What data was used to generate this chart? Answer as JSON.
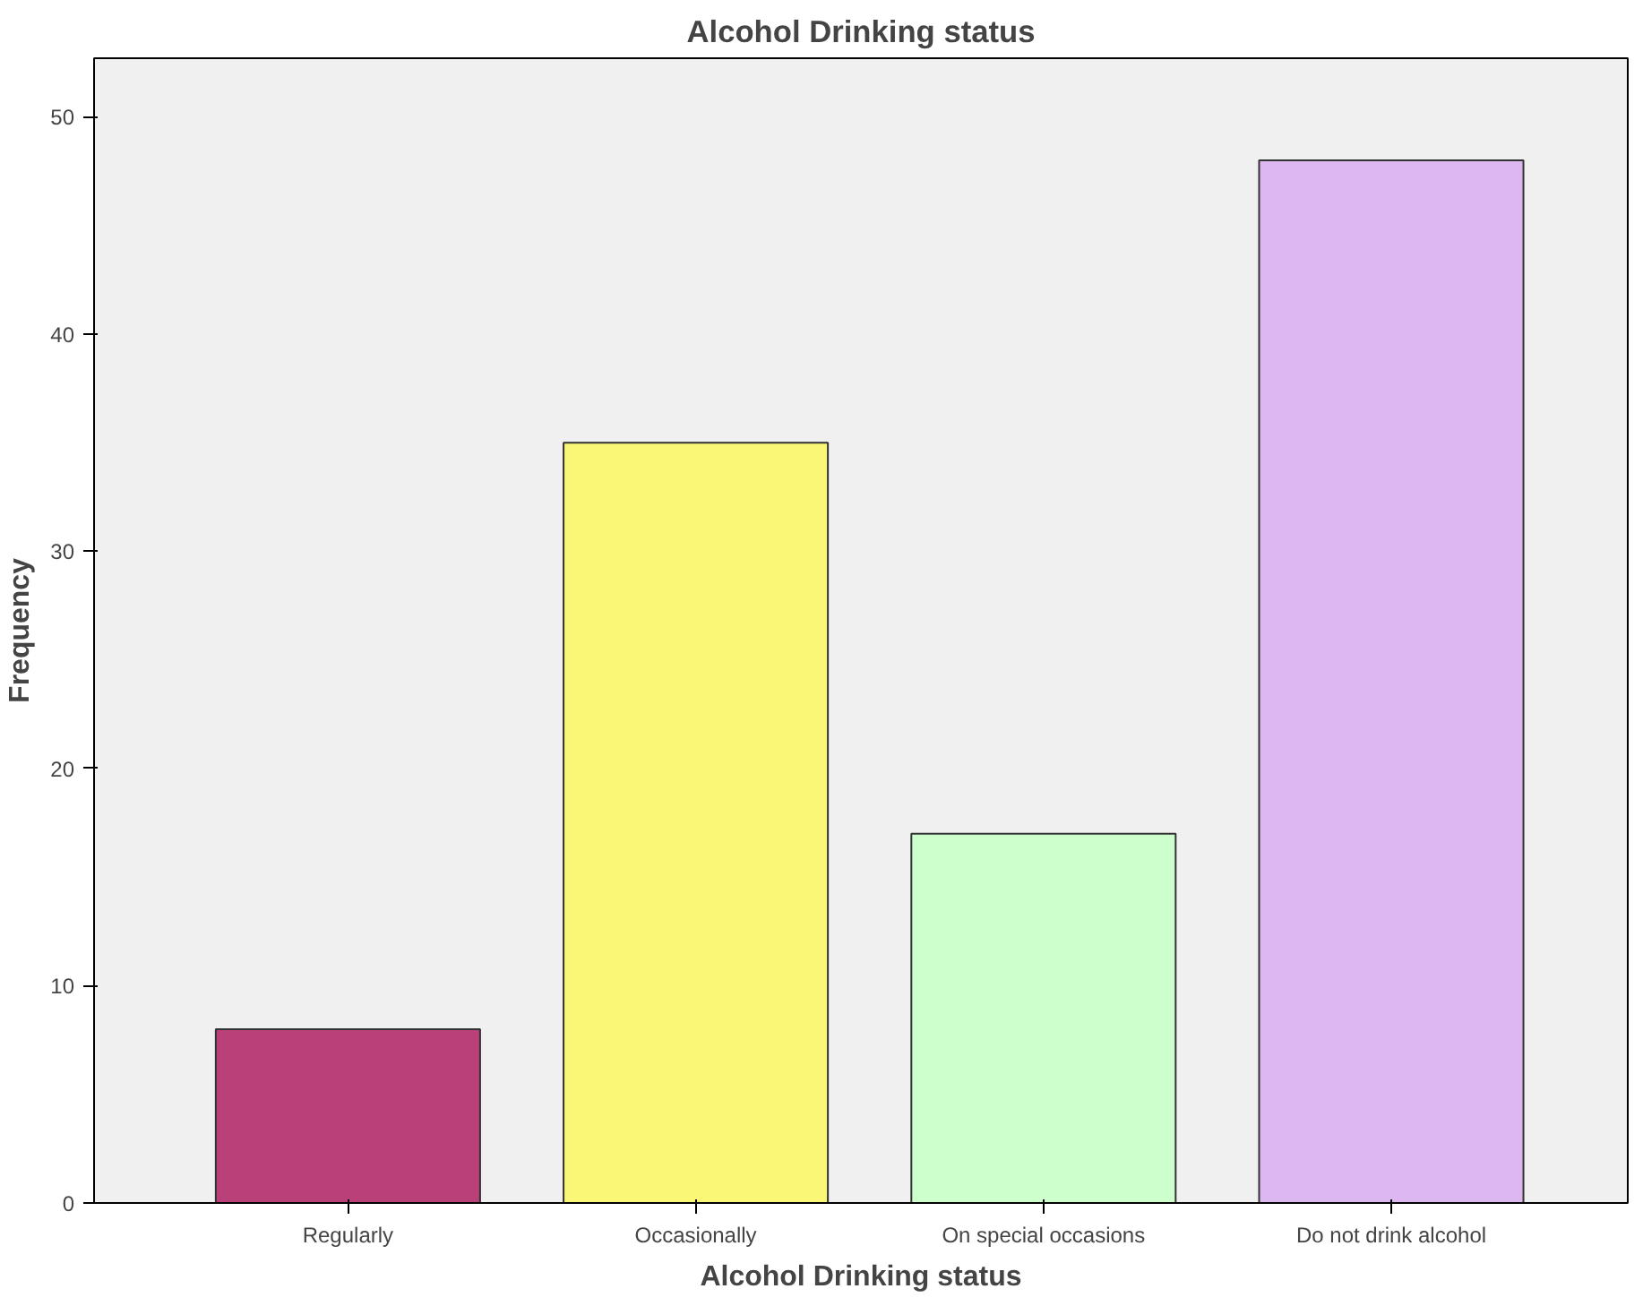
{
  "chart_data": {
    "type": "bar",
    "title": "Alcohol Drinking status",
    "xlabel": "Alcohol Drinking status",
    "ylabel": "Frequency",
    "categories": [
      "Regularly",
      "Occasionally",
      "On special occasions",
      "Do not drink alcohol"
    ],
    "values": [
      8,
      35,
      17,
      48
    ],
    "colors": [
      "#b94078",
      "#f9f775",
      "#ccffcc",
      "#ddb8f0"
    ],
    "ylim": [
      0,
      52.7
    ],
    "yticks": [
      0,
      10,
      20,
      30,
      40,
      50
    ],
    "grid": false
  }
}
